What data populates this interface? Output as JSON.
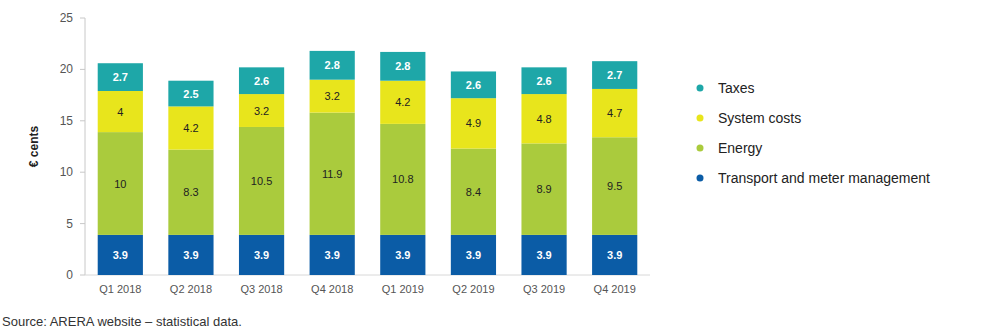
{
  "chart_data": {
    "type": "bar",
    "stacked": true,
    "data_labels": true,
    "grid": false,
    "legend": "right",
    "y_label": "€ cents",
    "source": "Source: ARERA website – statistical data.",
    "categories": [
      "Q1 2018",
      "Q2 2018",
      "Q3 2018",
      "Q4 2018",
      "Q1 2019",
      "Q2 2019",
      "Q3 2019",
      "Q4 2019"
    ],
    "series": [
      {
        "name": "Transport and meter management",
        "color": "#0b5ca6",
        "values": [
          3.9,
          3.9,
          3.9,
          3.9,
          3.9,
          3.9,
          3.9,
          3.9
        ]
      },
      {
        "name": "Energy",
        "color": "#aacb3d",
        "values": [
          10,
          8.3,
          10.5,
          11.9,
          10.8,
          8.4,
          8.9,
          9.5
        ]
      },
      {
        "name": "System costs",
        "color": "#e8e51c",
        "values": [
          4,
          4.2,
          3.2,
          3.2,
          4.2,
          4.9,
          4.8,
          4.7
        ]
      },
      {
        "name": "Taxes",
        "color": "#1ea7a8",
        "values": [
          2.7,
          2.5,
          2.6,
          2.8,
          2.8,
          2.6,
          2.6,
          2.7
        ]
      }
    ],
    "ylim": [
      0,
      25
    ],
    "yticks": [
      0,
      5,
      10,
      15,
      20,
      25
    ]
  }
}
